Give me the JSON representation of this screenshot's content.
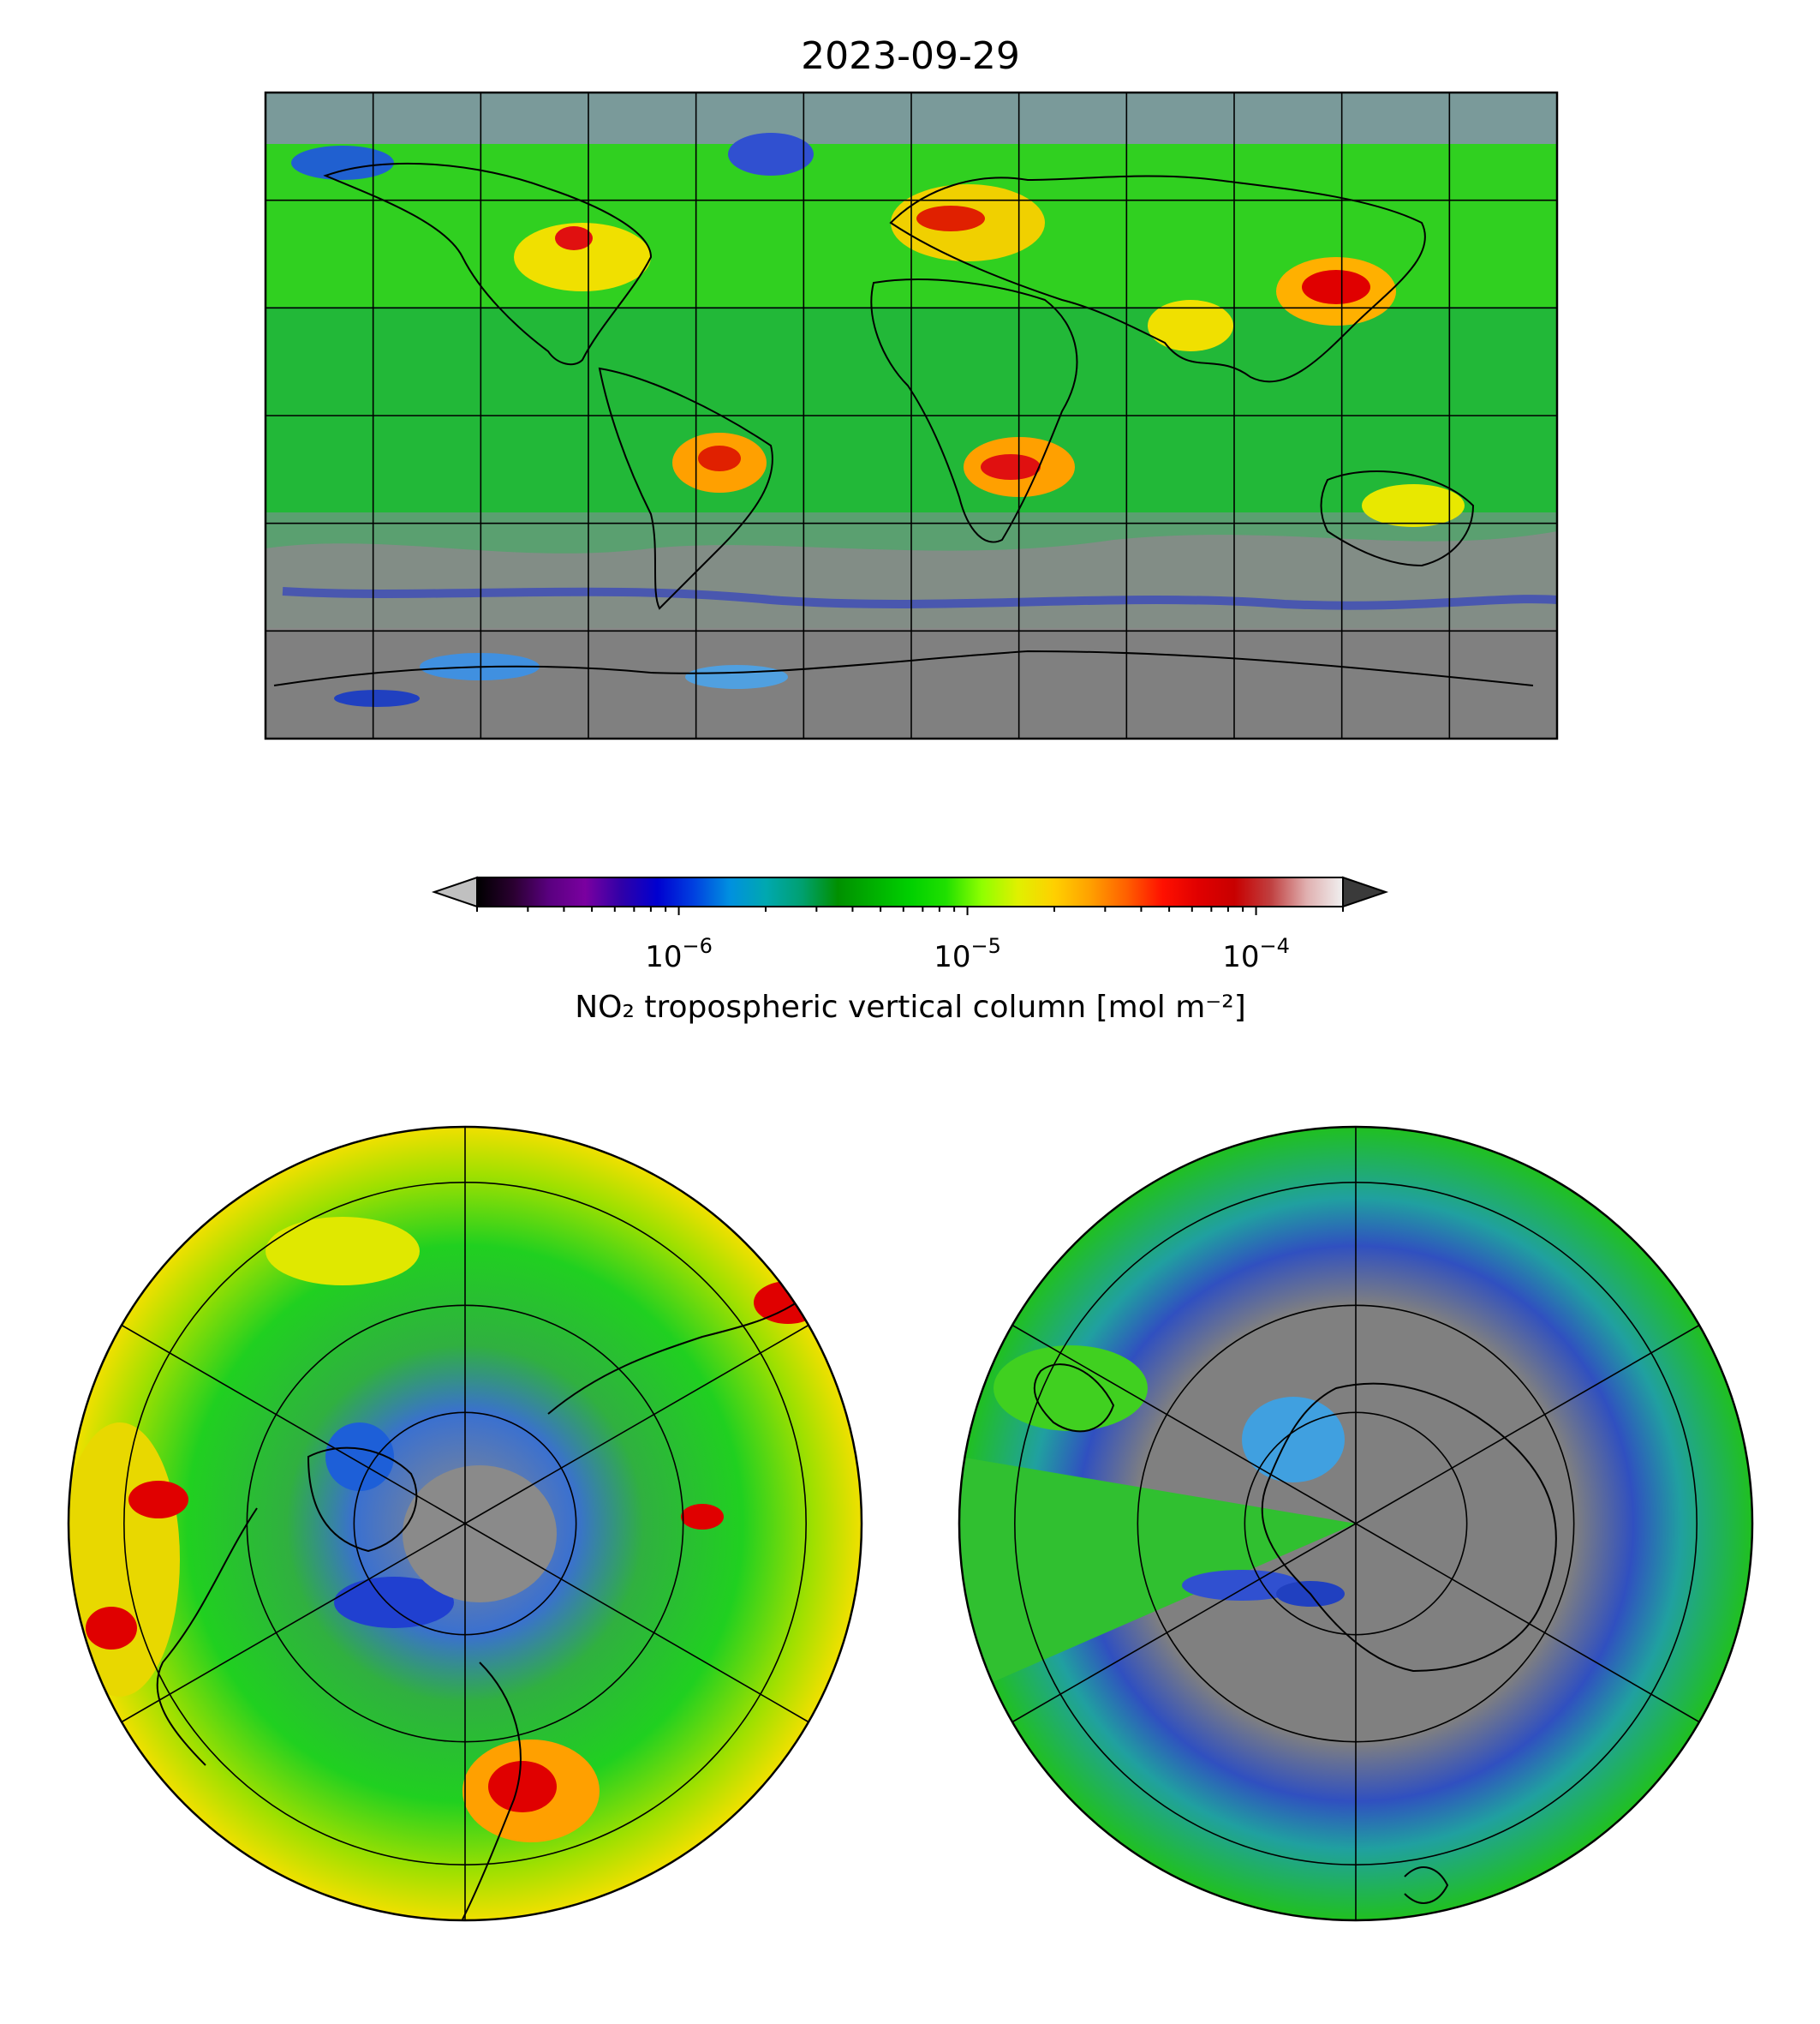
{
  "title": "2023-09-29",
  "colorbar": {
    "label": "NO₂ tropospheric vertical column [mol m⁻²]",
    "scale": "log",
    "range": [
      2e-07,
      0.0002
    ],
    "ticks": [
      {
        "value": 1e-06,
        "base": "10",
        "exp": "−6"
      },
      {
        "value": 1e-05,
        "base": "10",
        "exp": "−5"
      },
      {
        "value": 0.0001,
        "base": "10",
        "exp": "−4"
      }
    ],
    "extend": "both",
    "under_color": "#c0c0c0",
    "over_color": "#3a3a3a",
    "colormap": [
      "#000000",
      "#2a0030",
      "#5a0080",
      "#7a00a0",
      "#3000a8",
      "#0000d0",
      "#0040e0",
      "#0090e0",
      "#00a8b0",
      "#00a070",
      "#009000",
      "#00b000",
      "#00d000",
      "#20e000",
      "#90ff00",
      "#e0f000",
      "#ffd000",
      "#ffa000",
      "#ff6000",
      "#ff1000",
      "#e00000",
      "#c80000",
      "#c04040",
      "#e0b0b0",
      "#f0f0f0"
    ]
  },
  "panels": {
    "global": {
      "projection": "plate-carree",
      "no_data_color": "#808080"
    },
    "north_pole": {
      "projection": "north-polar-stereographic",
      "no_data_color": "#808080"
    },
    "south_pole": {
      "projection": "south-polar-stereographic",
      "no_data_color": "#808080"
    }
  }
}
